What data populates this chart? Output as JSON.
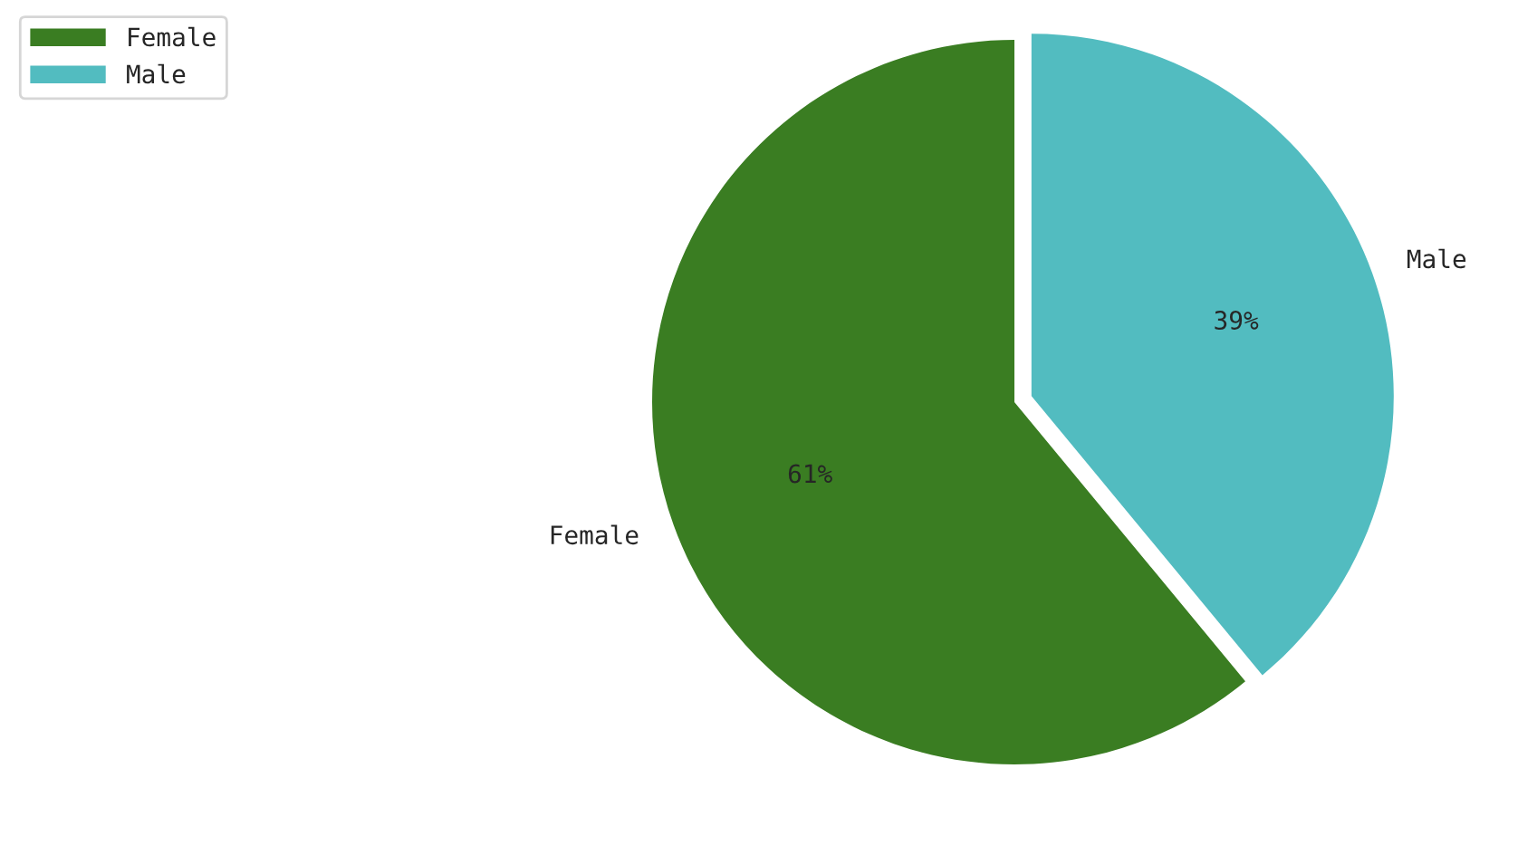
{
  "chart_data": {
    "type": "pie",
    "categories": [
      "Female",
      "Male"
    ],
    "values": [
      61,
      39
    ],
    "colors": [
      "#3a7d22",
      "#52bcc0"
    ],
    "value_labels": [
      "61%",
      "39%"
    ],
    "legend": "top left"
  }
}
